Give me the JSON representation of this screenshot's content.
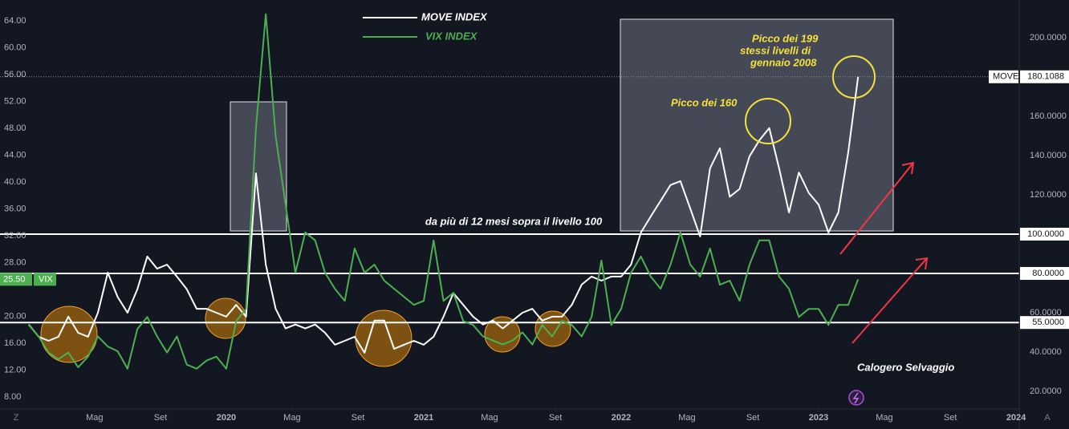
{
  "chart_data": {
    "type": "line",
    "x": [
      2019,
      2019.05,
      2019.1,
      2019.15,
      2019.2,
      2019.25,
      2019.3,
      2019.35,
      2019.4,
      2019.45,
      2019.5,
      2019.55,
      2019.6,
      2019.65,
      2019.7,
      2019.75,
      2019.8,
      2019.85,
      2019.9,
      2019.95,
      2020,
      2020.05,
      2020.1,
      2020.15,
      2020.2,
      2020.25,
      2020.3,
      2020.35,
      2020.4,
      2020.45,
      2020.5,
      2020.55,
      2020.6,
      2020.65,
      2020.7,
      2020.75,
      2020.8,
      2020.85,
      2020.9,
      2020.95,
      2021,
      2021.05,
      2021.1,
      2021.15,
      2021.2,
      2021.25,
      2021.3,
      2021.35,
      2021.4,
      2021.45,
      2021.5,
      2021.55,
      2021.6,
      2021.65,
      2021.7,
      2021.75,
      2021.8,
      2021.85,
      2021.9,
      2021.95,
      2022,
      2022.05,
      2022.1,
      2022.15,
      2022.2,
      2022.25,
      2022.3,
      2022.35,
      2022.4,
      2022.45,
      2022.5,
      2022.55,
      2022.6,
      2022.65,
      2022.7,
      2022.75,
      2022.8,
      2022.85,
      2022.9,
      2022.95,
      2023,
      2023.05,
      2023.1,
      2023.15,
      2023.2
    ],
    "series": [
      {
        "name": "MOVE INDEX",
        "color": "#ffffff",
        "axis": "y2",
        "values": [
          54,
          47.8,
          45.7,
          47.8,
          58,
          49.8,
          47.8,
          60,
          80.4,
          68,
          60,
          72,
          88.6,
          82.4,
          84.5,
          78.4,
          72,
          62,
          62,
          60,
          58,
          64,
          58,
          131,
          84.5,
          62,
          52,
          54,
          52,
          54,
          49.8,
          43.7,
          45.7,
          47.8,
          39.6,
          56,
          56,
          41.6,
          43.7,
          45.7,
          43.7,
          47.8,
          58,
          70,
          64,
          58,
          54,
          56,
          52,
          56,
          60,
          62,
          56,
          58,
          58,
          64,
          74.3,
          78.4,
          76.3,
          78.4,
          78.4,
          84.5,
          100.8,
          109,
          117,
          125,
          127,
          113,
          98.8,
          133.5,
          143.7,
          119,
          123,
          139.6,
          147.8,
          154,
          133.5,
          111,
          131.4,
          121,
          115,
          100.8,
          111,
          141.6,
          180.1088
        ]
      },
      {
        "name": "VIX INDEX",
        "color": "#4caf50",
        "axis": "y",
        "values": [
          18.7,
          17,
          14.6,
          13.6,
          14.6,
          12.4,
          14,
          17,
          15.5,
          14.8,
          12.2,
          18.1,
          19.9,
          17,
          14.6,
          17,
          12.8,
          12.2,
          13.4,
          14,
          12.2,
          19.3,
          21.1,
          48,
          65,
          46.8,
          36.7,
          26.5,
          32.5,
          31.3,
          26.5,
          24.1,
          22.3,
          30.1,
          26.5,
          27.7,
          25.3,
          24.1,
          22.9,
          21.7,
          22.3,
          31.3,
          22.3,
          23.5,
          19.3,
          18.7,
          17,
          16.4,
          15.8,
          16.4,
          17.6,
          15.8,
          18.7,
          17,
          19.3,
          18.7,
          17,
          19.9,
          28.3,
          18.7,
          21.1,
          26.5,
          28.9,
          25.9,
          24.1,
          27.7,
          32.5,
          27.7,
          25.9,
          30.1,
          24.7,
          25.3,
          22.3,
          27.7,
          31.3,
          31.3,
          25.9,
          24.1,
          19.9,
          21.1,
          21.1,
          18.7,
          21.7,
          21.7,
          25.5
        ]
      }
    ],
    "xlim": [
      2018.854,
      2024.016
    ],
    "xticks": [
      {
        "value": 2019.333,
        "label": "Mag"
      },
      {
        "value": 2019.667,
        "label": "Set"
      },
      2020,
      {
        "value": 2020.333,
        "label": "Mag"
      },
      {
        "value": 2020.667,
        "label": "Set"
      },
      2021,
      {
        "value": 2021.333,
        "label": "Mag"
      },
      {
        "value": 2021.667,
        "label": "Set"
      },
      2022,
      {
        "value": 2022.333,
        "label": "Mag"
      },
      {
        "value": 2022.667,
        "label": "Set"
      },
      2023,
      {
        "value": 2023.333,
        "label": "Mag"
      },
      {
        "value": 2023.667,
        "label": "Set"
      },
      2024
    ],
    "ylim": [
      6.2,
      67.1
    ],
    "yticks": [
      {
        "value": 8,
        "label": "8.00"
      },
      {
        "value": 12,
        "label": "12.00"
      },
      {
        "value": 16,
        "label": "16.00"
      },
      {
        "value": 20,
        "label": "20.00"
      },
      {
        "value": 28,
        "label": "28.00"
      },
      {
        "value": 32,
        "label": "32.00"
      },
      {
        "value": 36,
        "label": "36.00"
      },
      {
        "value": 40,
        "label": "40.00"
      },
      {
        "value": 44,
        "label": "44.00"
      },
      {
        "value": 48,
        "label": "48.00"
      },
      {
        "value": 52,
        "label": "52.00"
      },
      {
        "value": 56,
        "label": "56.00"
      },
      {
        "value": 60,
        "label": "60.00"
      },
      {
        "value": 64,
        "label": "64.00"
      }
    ],
    "y2lim": [
      11,
      219.2
    ],
    "y2ticks": [
      {
        "value": 20,
        "label": "20.0000"
      },
      {
        "value": 40,
        "label": "40.0000"
      },
      {
        "value": 60,
        "label": "60.0000"
      },
      {
        "value": 120,
        "label": "120.0000"
      },
      {
        "value": 140,
        "label": "140.0000"
      },
      {
        "value": 160,
        "label": "160.0000"
      },
      {
        "value": 200,
        "label": "200.0000"
      }
    ],
    "levels": [
      {
        "value": 100,
        "label": "100.0000"
      },
      {
        "value": 80,
        "label": "80.0000"
      },
      {
        "value": 55,
        "label": "55.0000"
      }
    ],
    "price_tags": [
      {
        "axis": "y2",
        "tag": "MOVE",
        "value": 180.1088,
        "label": "180.1088"
      },
      {
        "axis": "y",
        "tag": "VIX",
        "value": 25.5,
        "label": "25.50"
      }
    ],
    "grid": false,
    "annotations": {
      "level_note": "da più di 12 mesi sopra il livello 100",
      "peak_160": "Picco dei 160",
      "peak_199": [
        "Picco dei 199",
        "stessi livelli di",
        "gennaio 2008"
      ],
      "author": "Calogero Selvaggio"
    },
    "ui": {
      "left_icon": "Z",
      "right_icon": "A"
    }
  }
}
